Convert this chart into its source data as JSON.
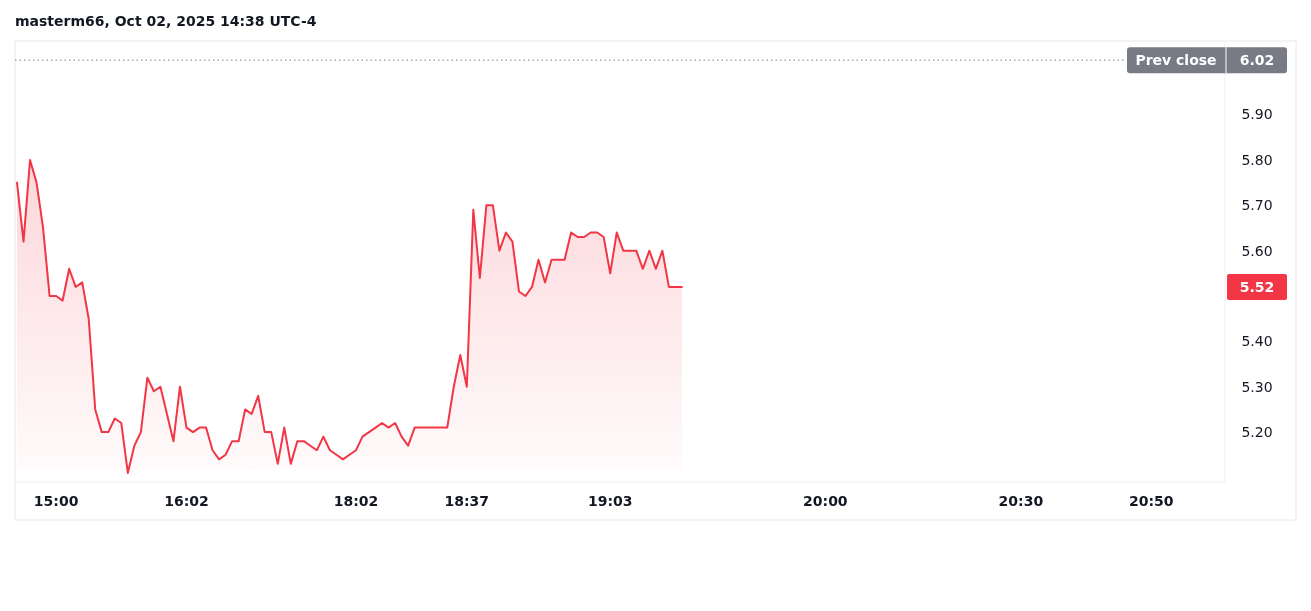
{
  "chart_data": {
    "type": "area",
    "title": "masterm66, Oct 02, 2025 14:38 UTC-4",
    "categories": [
      null,
      null,
      null,
      null,
      null,
      null,
      "15:00",
      null,
      null,
      null,
      null,
      null,
      null,
      null,
      null,
      null,
      null,
      null,
      null,
      null,
      null,
      null,
      null,
      null,
      null,
      null,
      "16:02",
      null,
      null,
      null,
      null,
      null,
      null,
      null,
      null,
      null,
      null,
      null,
      null,
      null,
      null,
      null,
      null,
      null,
      null,
      null,
      null,
      null,
      null,
      null,
      null,
      null,
      "18:02",
      null,
      null,
      null,
      null,
      null,
      null,
      null,
      null,
      null,
      null,
      null,
      null,
      null,
      null,
      null,
      null,
      "18:37",
      null,
      null,
      null,
      null,
      null,
      null,
      null,
      null,
      null,
      null,
      null,
      null,
      null,
      null,
      null,
      null,
      null,
      null,
      null,
      null,
      null,
      "19:03",
      null,
      null,
      null,
      null,
      null,
      null,
      null,
      null,
      null,
      null,
      null,
      null,
      null,
      null,
      null,
      null,
      null,
      null,
      null,
      null,
      null,
      null,
      null,
      null,
      null,
      null,
      null,
      null,
      null,
      null,
      null,
      null,
      "20:00",
      null,
      null,
      null,
      null,
      null,
      null,
      null,
      null,
      null,
      null,
      null,
      null,
      null,
      null,
      null,
      null,
      null,
      null,
      null,
      null,
      null,
      null,
      null,
      null,
      null,
      null,
      null,
      null,
      null,
      "20:30",
      null,
      null,
      null,
      null,
      null,
      null,
      null,
      null,
      null,
      null,
      null,
      null,
      null,
      null,
      null,
      null,
      null,
      null,
      null,
      "20:50",
      null,
      null,
      null,
      null,
      null,
      null,
      null,
      null,
      null,
      null,
      null
    ],
    "series": [
      {
        "color": "#f23645",
        "values": [
          5.75,
          5.62,
          5.8,
          5.75,
          5.65,
          5.5,
          5.5,
          5.49,
          5.56,
          5.52,
          5.53,
          5.45,
          5.25,
          5.2,
          5.2,
          5.23,
          5.22,
          5.11,
          5.17,
          5.2,
          5.32,
          5.29,
          5.3,
          5.24,
          5.18,
          5.3,
          5.21,
          5.2,
          5.21,
          5.21,
          5.16,
          5.14,
          5.15,
          5.18,
          5.18,
          5.25,
          5.24,
          5.28,
          5.2,
          5.2,
          5.13,
          5.21,
          5.13,
          5.18,
          5.18,
          5.17,
          5.16,
          5.19,
          5.16,
          5.15,
          5.14,
          5.15,
          5.16,
          5.19,
          5.2,
          5.21,
          5.22,
          5.21,
          5.22,
          5.19,
          5.17,
          5.21,
          5.21,
          5.21,
          5.21,
          5.21,
          5.21,
          5.3,
          5.37,
          5.3,
          5.69,
          5.54,
          5.7,
          5.7,
          5.6,
          5.64,
          5.62,
          5.51,
          5.5,
          5.52,
          5.58,
          5.53,
          5.58,
          5.58,
          5.58,
          5.64,
          5.63,
          5.63,
          5.64,
          5.64,
          5.63,
          5.55,
          5.64,
          5.6,
          5.6,
          5.6,
          5.56,
          5.6,
          5.56,
          5.6,
          5.52,
          5.52,
          5.52,
          null,
          null,
          null,
          null,
          null,
          null,
          null,
          null,
          null,
          null,
          null,
          null,
          null,
          null,
          null,
          null,
          null,
          null,
          null,
          null,
          null,
          null,
          null,
          null,
          null,
          null,
          null,
          null,
          null,
          null,
          null,
          null,
          null,
          null,
          null,
          null,
          null,
          null,
          null,
          null,
          null,
          null,
          null,
          null,
          null,
          null,
          null,
          null,
          null,
          null,
          null,
          null,
          null,
          null,
          null,
          null,
          null,
          null,
          null,
          null,
          null,
          null,
          null,
          null,
          null,
          null,
          null,
          null,
          null,
          null,
          null,
          null,
          null,
          null,
          null,
          null,
          null,
          null,
          null,
          null,
          null,
          null,
          null
        ]
      }
    ],
    "ylim": [
      5.09,
      6.06
    ],
    "yticks": [
      {
        "value": 5.2,
        "label": "5.20"
      },
      {
        "value": 5.3,
        "label": "5.30"
      },
      {
        "value": 5.4,
        "label": "5.40"
      },
      {
        "value": 5.6,
        "label": "5.60"
      },
      {
        "value": 5.7,
        "label": "5.70"
      },
      {
        "value": 5.8,
        "label": "5.80"
      },
      {
        "value": 5.9,
        "label": "5.90"
      }
    ],
    "ref_lines": [
      {
        "axis": "y",
        "value": 6.02,
        "label": "Prev close",
        "color": "#787b86",
        "line_style": "dotted"
      }
    ],
    "annotations": [
      "5.52",
      "6.02"
    ],
    "grid": false
  }
}
